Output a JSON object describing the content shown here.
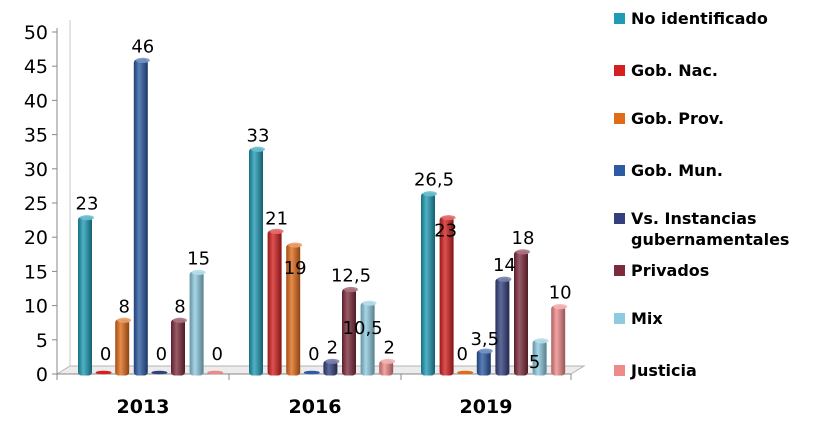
{
  "chart_data": {
    "type": "bar",
    "categories": [
      "2013",
      "2016",
      "2019"
    ],
    "ylim": [
      0,
      50
    ],
    "yticks": [
      "0",
      "5",
      "10",
      "15",
      "20",
      "25",
      "30",
      "35",
      "40",
      "45",
      "50"
    ],
    "grid": false,
    "legend_position": "right",
    "series": [
      {
        "name": "No identificado",
        "color": "#1f9bb5",
        "values": [
          23,
          33,
          26.5
        ],
        "labels": [
          "23",
          "33",
          "26,5"
        ]
      },
      {
        "name": "Gob. Nac.",
        "color": "#d42020",
        "values": [
          0,
          21,
          23
        ],
        "labels": [
          "0",
          "21",
          "23"
        ]
      },
      {
        "name": "Gob. Prov.",
        "color": "#e06c1a",
        "values": [
          8,
          19,
          0
        ],
        "labels": [
          "8",
          "19",
          "0"
        ]
      },
      {
        "name": "Gob. Mun.",
        "color": "#2c5aa3",
        "values": [
          46,
          0,
          3.5
        ],
        "labels": [
          "46",
          "0",
          "3,5"
        ]
      },
      {
        "name": "Vs. Instancias gubernamentales",
        "color": "#33407e",
        "values": [
          0,
          2,
          14
        ],
        "labels": [
          "0",
          "2",
          "14"
        ]
      },
      {
        "name": "Privados",
        "color": "#7d2b3c",
        "values": [
          8,
          12.5,
          18
        ],
        "labels": [
          "8",
          "12,5",
          "18"
        ]
      },
      {
        "name": "Mix",
        "color": "#8ecbe0",
        "values": [
          15,
          10.5,
          5
        ],
        "labels": [
          "15",
          "10,5",
          "5"
        ]
      },
      {
        "name": "Justicia",
        "color": "#ef8a8a",
        "values": [
          0,
          2,
          10
        ],
        "labels": [
          "0",
          "2",
          "10"
        ]
      }
    ]
  }
}
